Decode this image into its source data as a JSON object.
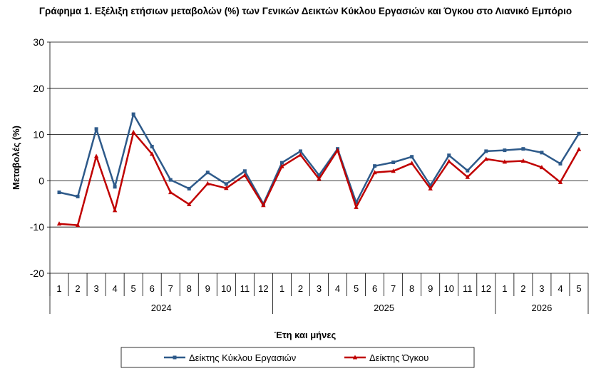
{
  "chart_data": {
    "type": "line",
    "title": "Γράφημα 1. Εξέλιξη ετήσιων μεταβολών (%) των Γενικών Δεικτών Κύκλου Εργασιών και Όγκου στο Λιανικό Εμπόριο",
    "xlabel": "Έτη και μήνες",
    "ylabel": "Μεταβολές  (%)",
    "ylim": [
      -20,
      30
    ],
    "yticks": [
      "30",
      "20",
      "10",
      "0",
      "-10",
      "-20"
    ],
    "grid": true,
    "legend_position": "bottom-center",
    "categories": [
      "1",
      "2",
      "3",
      "4",
      "5",
      "6",
      "7",
      "8",
      "9",
      "10",
      "11",
      "12",
      "1",
      "2",
      "3",
      "4",
      "5",
      "6",
      "7",
      "8",
      "9",
      "10",
      "11",
      "12",
      "1",
      "2",
      "3",
      "4",
      "5"
    ],
    "groups": [
      {
        "label": "2024",
        "count": 12
      },
      {
        "label": "2025",
        "count": 12
      },
      {
        "label": "2026",
        "count": 5
      }
    ],
    "series": [
      {
        "name": "Δείκτης Κύκλου Εργασιών",
        "color": "#2e5a8a",
        "marker": "square",
        "values": [
          -2.5,
          -3.4,
          11.2,
          -1.3,
          14.4,
          7.4,
          0.2,
          -1.7,
          1.8,
          -0.7,
          2.1,
          -5.0,
          3.9,
          6.4,
          1.2,
          6.9,
          -4.7,
          3.2,
          4.0,
          5.2,
          -1.0,
          5.5,
          2.2,
          6.4,
          6.6,
          6.9,
          6.1,
          3.7,
          10.2
        ]
      },
      {
        "name": "Δείκτης Όγκου",
        "color": "#c00000",
        "marker": "triangle",
        "values": [
          -9.3,
          -9.6,
          5.3,
          -6.4,
          10.5,
          5.8,
          -2.5,
          -5.1,
          -0.6,
          -1.6,
          1.2,
          -5.3,
          3.1,
          5.6,
          0.4,
          6.6,
          -5.7,
          1.8,
          2.1,
          3.8,
          -1.7,
          4.2,
          0.8,
          4.7,
          4.1,
          4.3,
          2.9,
          -0.3,
          6.8
        ]
      }
    ]
  }
}
